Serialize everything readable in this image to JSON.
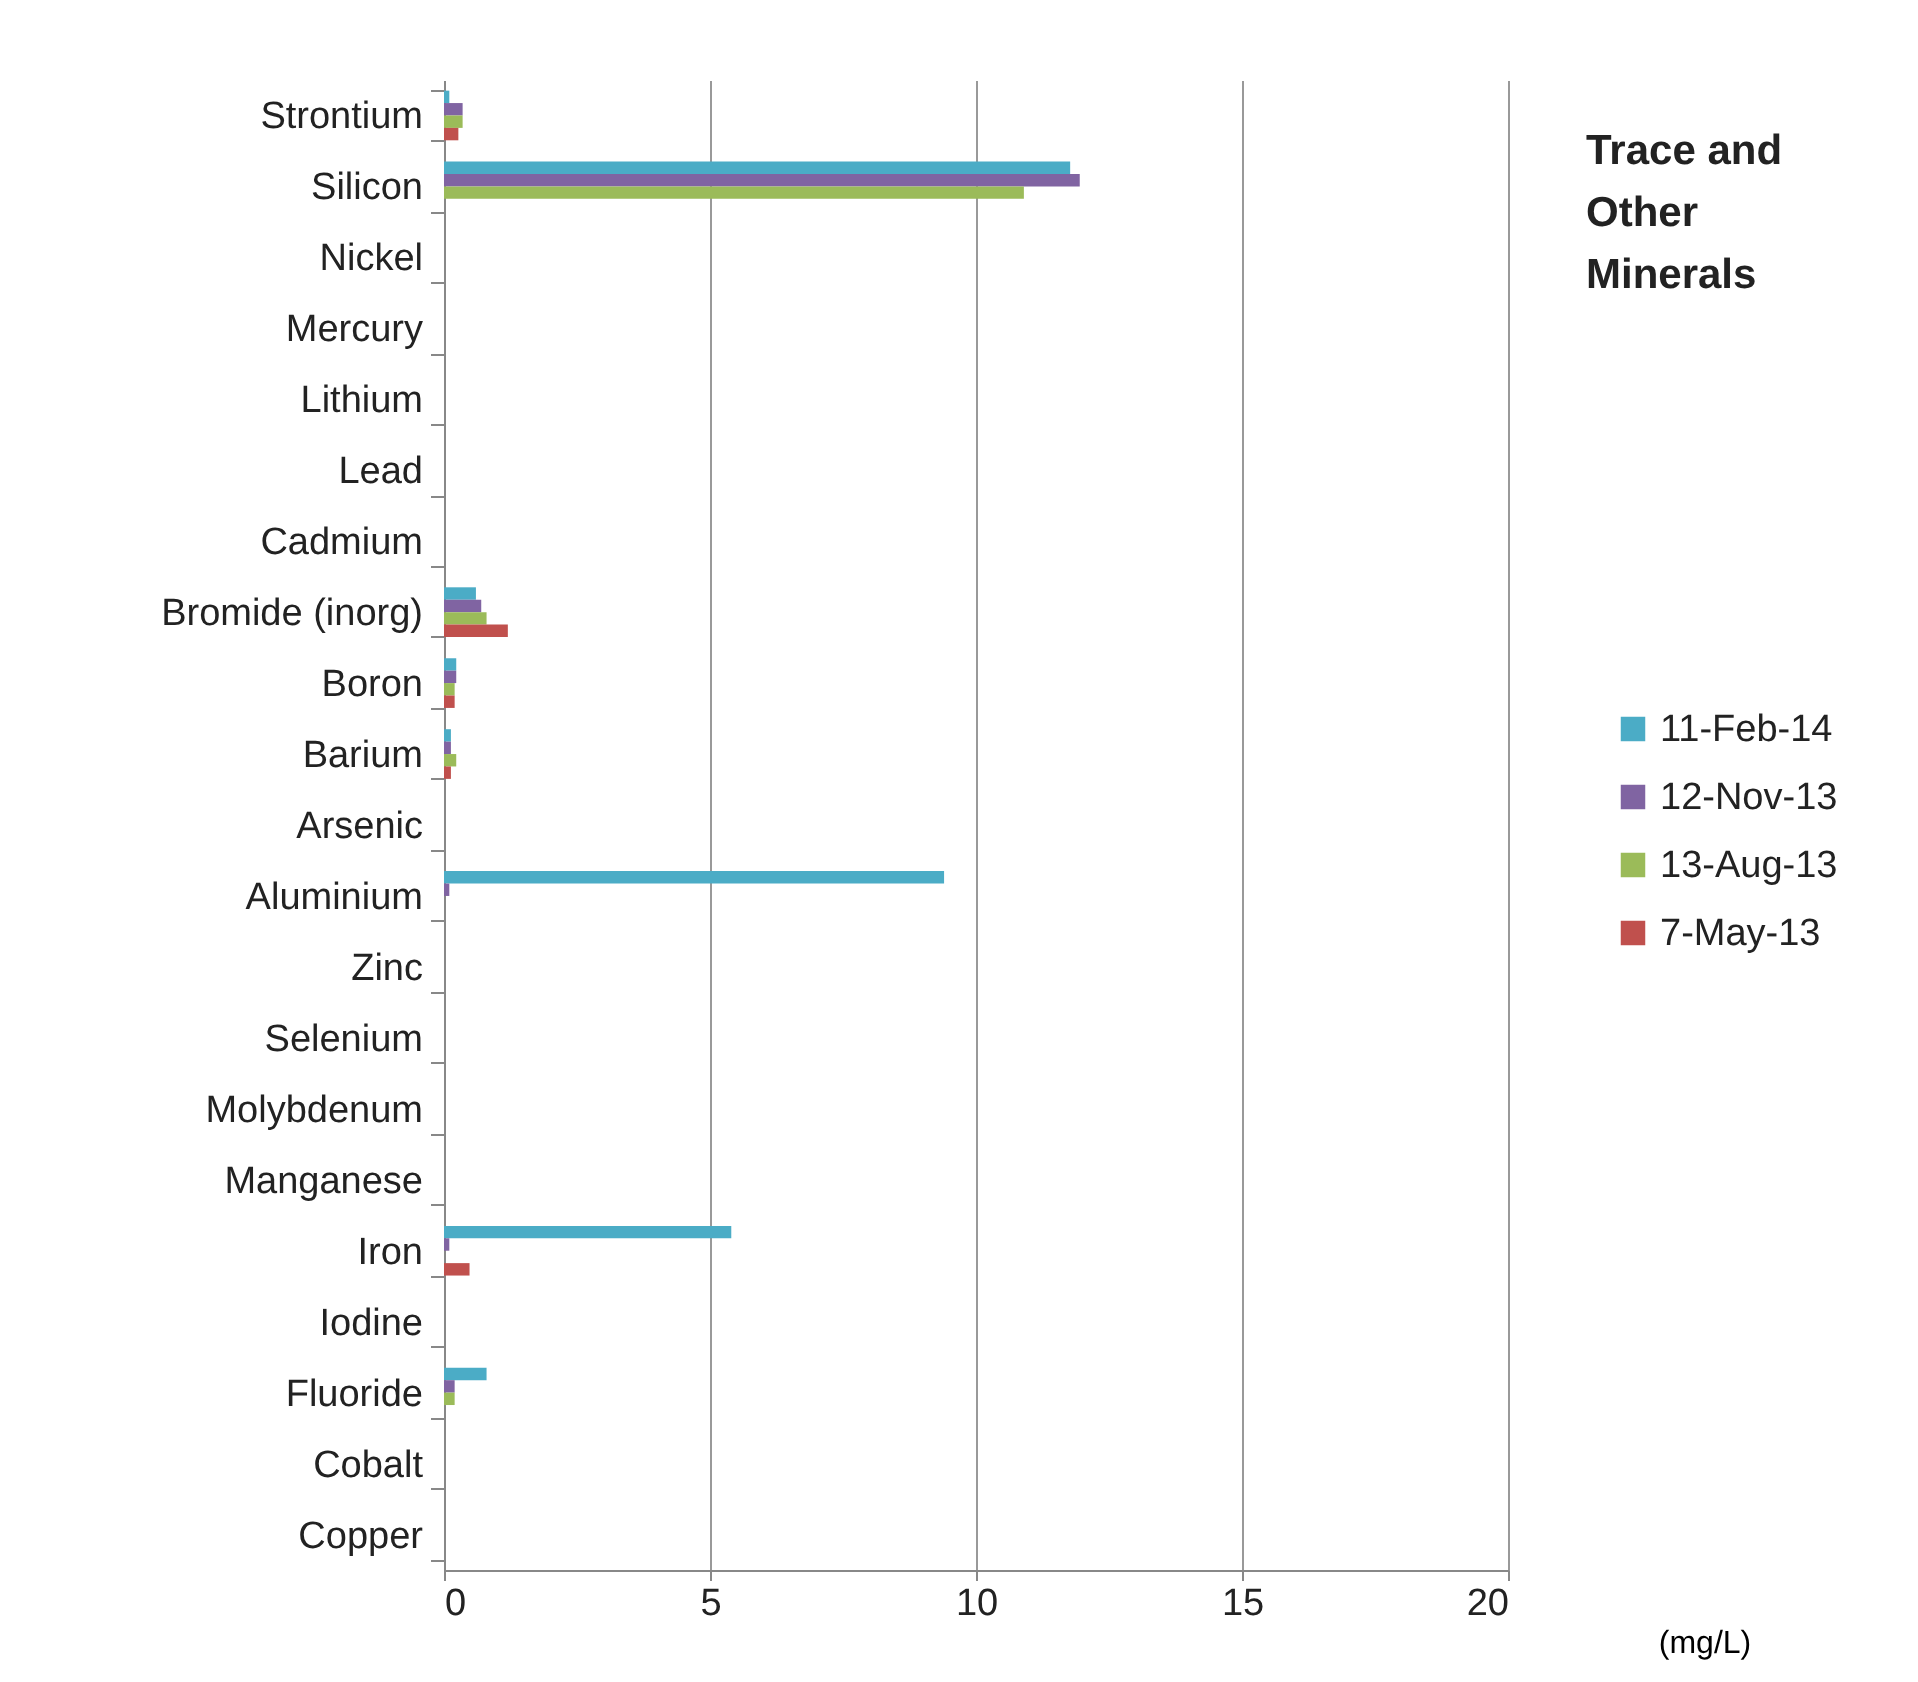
{
  "chart_data": {
    "type": "bar",
    "orientation": "horizontal",
    "title": "Trace and Other Minerals",
    "xlabel": "(mg/L)",
    "categories": [
      "Strontium",
      "Silicon",
      "Nickel",
      "Mercury",
      "Lithium",
      "Lead",
      "Cadmium",
      "Bromide (inorg)",
      "Boron",
      "Barium",
      "Arsenic",
      "Aluminium",
      "Zinc",
      "Selenium",
      "Molybdenum",
      "Manganese",
      "Iron",
      "Iodine",
      "Fluoride",
      "Cobalt",
      "Copper"
    ],
    "series": [
      {
        "name": "11-Feb-14",
        "color": "#4bacc6",
        "values": [
          0.1,
          11.77,
          0,
          0,
          0,
          0,
          0,
          0.6,
          0.23,
          0.13,
          0,
          9.4,
          0,
          0,
          0,
          0,
          5.4,
          0,
          0.8,
          0,
          0
        ]
      },
      {
        "name": "12-Nov-13",
        "color": "#8064a2",
        "values": [
          0.35,
          11.95,
          0,
          0,
          0,
          0,
          0,
          0.7,
          0.23,
          0.13,
          0,
          0.1,
          0,
          0,
          0,
          0,
          0.1,
          0,
          0.2,
          0,
          0
        ]
      },
      {
        "name": "13-Aug-13",
        "color": "#9bbb59",
        "values": [
          0.35,
          10.9,
          0,
          0,
          0,
          0,
          0,
          0.8,
          0.2,
          0.23,
          0,
          0,
          0,
          0,
          0,
          0,
          0,
          0,
          0.2,
          0,
          0
        ]
      },
      {
        "name": "7-May-13",
        "color": "#c0504d",
        "values": [
          0.27,
          0,
          0,
          0,
          0,
          0,
          0,
          1.2,
          0.2,
          0.13,
          0,
          0,
          0,
          0,
          0,
          0,
          0.48,
          0,
          0,
          0,
          0
        ]
      }
    ],
    "xlim": [
      0,
      20
    ],
    "xticks": [
      0,
      5,
      10,
      15,
      20
    ],
    "grid": "x",
    "legend": "right"
  }
}
